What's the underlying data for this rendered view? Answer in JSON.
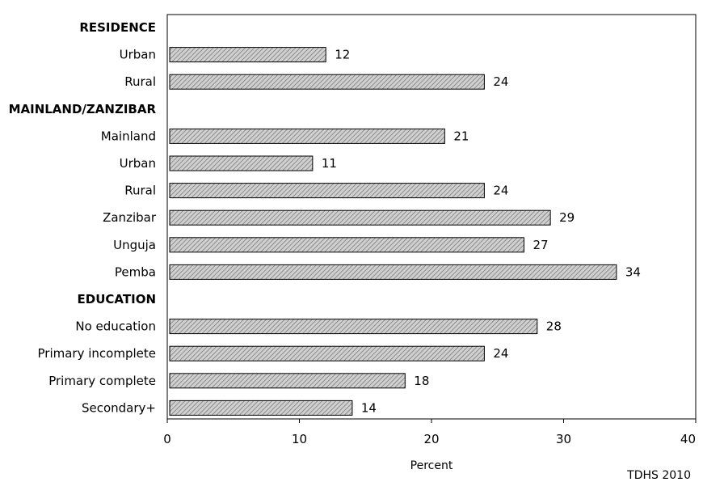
{
  "chart_data": {
    "type": "bar",
    "orientation": "horizontal",
    "xlabel": "Percent",
    "xlim": [
      0,
      40
    ],
    "xticks": [
      0,
      10,
      20,
      30,
      40
    ],
    "grid": false,
    "bar_fill": "#b9b9b9",
    "bar_stroke": "#000000",
    "rows": [
      {
        "kind": "header",
        "label": "RESIDENCE"
      },
      {
        "kind": "bar",
        "label": "Urban",
        "value": 12
      },
      {
        "kind": "bar",
        "label": "Rural",
        "value": 24
      },
      {
        "kind": "header",
        "label": "MAINLAND/ZANZIBAR"
      },
      {
        "kind": "bar",
        "label": "Mainland",
        "value": 21
      },
      {
        "kind": "bar",
        "label": "Urban",
        "value": 11
      },
      {
        "kind": "bar",
        "label": "Rural",
        "value": 24
      },
      {
        "kind": "bar",
        "label": "Zanzibar",
        "value": 29
      },
      {
        "kind": "bar",
        "label": "Unguja",
        "value": 27
      },
      {
        "kind": "bar",
        "label": "Pemba",
        "value": 34
      },
      {
        "kind": "header",
        "label": "EDUCATION"
      },
      {
        "kind": "bar",
        "label": "No education",
        "value": 28
      },
      {
        "kind": "bar",
        "label": "Primary incomplete",
        "value": 24
      },
      {
        "kind": "bar",
        "label": "Primary complete",
        "value": 18
      },
      {
        "kind": "bar",
        "label": "Secondary+",
        "value": 14
      }
    ]
  },
  "source": "TDHS 2010"
}
